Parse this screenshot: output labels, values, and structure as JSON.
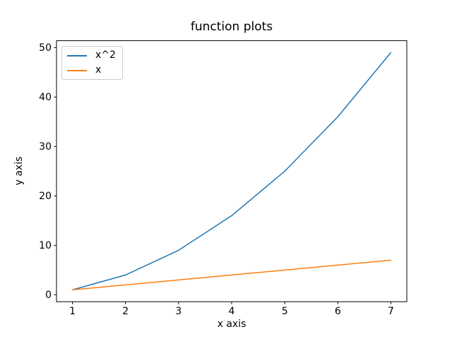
{
  "chart_data": {
    "type": "line",
    "title": "function plots",
    "xlabel": "x axis",
    "ylabel": "y axis",
    "x": [
      1,
      2,
      3,
      4,
      5,
      6,
      7
    ],
    "series": [
      {
        "name": "x^2",
        "color": "#1f77b4",
        "values": [
          1,
          4,
          9,
          16,
          25,
          36,
          49
        ]
      },
      {
        "name": "x",
        "color": "#ff7f0e",
        "values": [
          1,
          2,
          3,
          4,
          5,
          6,
          7
        ]
      }
    ],
    "xticks": [
      1,
      2,
      3,
      4,
      5,
      6,
      7
    ],
    "yticks": [
      0,
      10,
      20,
      30,
      40,
      50
    ],
    "xlim": [
      0.7,
      7.3
    ],
    "ylim": [
      -1.4,
      51.4
    ],
    "grid": false,
    "legend_position": "upper left",
    "background_color": "#ffffff",
    "axis_color": "#000000"
  }
}
